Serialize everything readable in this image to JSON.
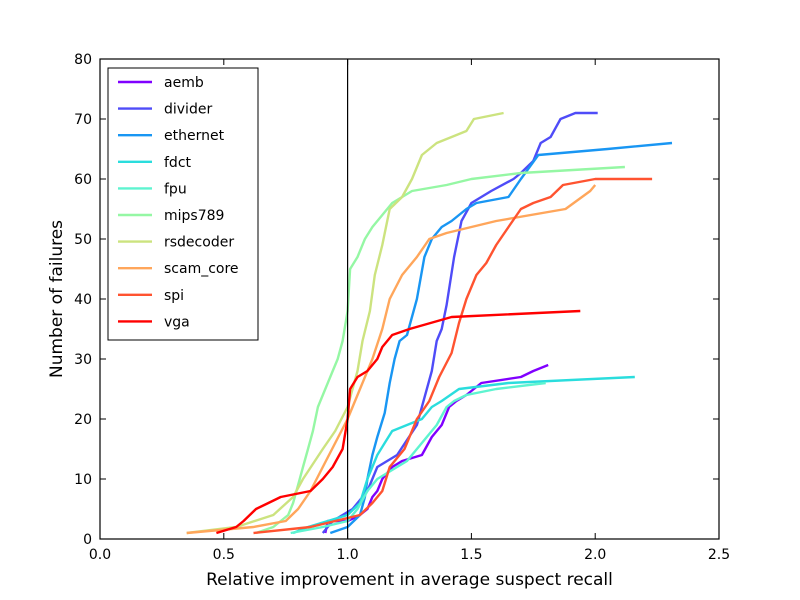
{
  "chart_data": {
    "type": "line",
    "title": "",
    "xlabel": "Relative improvement in average suspect recall",
    "ylabel": "Number of failures",
    "xlim": [
      0.0,
      2.5
    ],
    "ylim": [
      0,
      80
    ],
    "xticks": [
      "0.0",
      "0.5",
      "1.0",
      "1.5",
      "2.0",
      "2.5"
    ],
    "yticks": [
      "0",
      "10",
      "20",
      "30",
      "40",
      "50",
      "60",
      "70",
      "80"
    ],
    "grid": false,
    "legend": "top-left",
    "reference_line_x": 1.0,
    "series": [
      {
        "name": "aemb",
        "color": "#8000ff",
        "points": [
          [
            0.91,
            1
          ],
          [
            0.92,
            3
          ],
          [
            1.0,
            3
          ],
          [
            1.05,
            4
          ],
          [
            1.08,
            5
          ],
          [
            1.1,
            7
          ],
          [
            1.12,
            8
          ],
          [
            1.14,
            10
          ],
          [
            1.16,
            11
          ],
          [
            1.18,
            12
          ],
          [
            1.22,
            13
          ],
          [
            1.3,
            14
          ],
          [
            1.34,
            17
          ],
          [
            1.38,
            19
          ],
          [
            1.41,
            22
          ],
          [
            1.44,
            23
          ],
          [
            1.48,
            24
          ],
          [
            1.54,
            26
          ],
          [
            1.7,
            27
          ],
          [
            1.75,
            28
          ],
          [
            1.81,
            29
          ]
        ]
      },
      {
        "name": "divider",
        "color": "#4f4cf8",
        "points": [
          [
            0.9,
            1
          ],
          [
            0.94,
            3
          ],
          [
            1.02,
            5
          ],
          [
            1.08,
            8
          ],
          [
            1.12,
            12
          ],
          [
            1.2,
            14
          ],
          [
            1.28,
            19
          ],
          [
            1.34,
            28
          ],
          [
            1.36,
            33
          ],
          [
            1.38,
            35
          ],
          [
            1.4,
            39
          ],
          [
            1.43,
            47
          ],
          [
            1.46,
            53
          ],
          [
            1.5,
            56
          ],
          [
            1.58,
            58
          ],
          [
            1.67,
            60
          ],
          [
            1.7,
            61
          ],
          [
            1.75,
            63
          ],
          [
            1.78,
            66
          ],
          [
            1.82,
            67
          ],
          [
            1.86,
            70
          ],
          [
            1.92,
            71
          ],
          [
            2.01,
            71
          ]
        ]
      },
      {
        "name": "ethernet",
        "color": "#1996f3",
        "points": [
          [
            0.93,
            1
          ],
          [
            1.0,
            2
          ],
          [
            1.05,
            4
          ],
          [
            1.07,
            7
          ],
          [
            1.08,
            10
          ],
          [
            1.1,
            14
          ],
          [
            1.12,
            17
          ],
          [
            1.15,
            21
          ],
          [
            1.17,
            26
          ],
          [
            1.19,
            30
          ],
          [
            1.21,
            33
          ],
          [
            1.24,
            34
          ],
          [
            1.28,
            40
          ],
          [
            1.31,
            47
          ],
          [
            1.34,
            50
          ],
          [
            1.38,
            52
          ],
          [
            1.42,
            53
          ],
          [
            1.48,
            55
          ],
          [
            1.52,
            56
          ],
          [
            1.65,
            57
          ],
          [
            1.7,
            60
          ],
          [
            1.77,
            64
          ],
          [
            2.05,
            65
          ],
          [
            2.31,
            66
          ]
        ]
      },
      {
        "name": "fdct",
        "color": "#2adddd",
        "points": [
          [
            0.78,
            1
          ],
          [
            0.84,
            2
          ],
          [
            0.92,
            3
          ],
          [
            1.0,
            4
          ],
          [
            1.05,
            6
          ],
          [
            1.08,
            10
          ],
          [
            1.12,
            14
          ],
          [
            1.15,
            16
          ],
          [
            1.18,
            18
          ],
          [
            1.24,
            19
          ],
          [
            1.3,
            20
          ],
          [
            1.34,
            22
          ],
          [
            1.38,
            23
          ],
          [
            1.45,
            25
          ],
          [
            1.65,
            26
          ],
          [
            2.16,
            27
          ]
        ]
      },
      {
        "name": "fpu",
        "color": "#5ef4d0",
        "points": [
          [
            0.77,
            1
          ],
          [
            0.9,
            2
          ],
          [
            1.0,
            3
          ],
          [
            1.04,
            5
          ],
          [
            1.08,
            8
          ],
          [
            1.12,
            10
          ],
          [
            1.16,
            11
          ],
          [
            1.2,
            12
          ],
          [
            1.24,
            13
          ],
          [
            1.28,
            15
          ],
          [
            1.32,
            17
          ],
          [
            1.36,
            19
          ],
          [
            1.4,
            22
          ],
          [
            1.43,
            23
          ],
          [
            1.48,
            24
          ],
          [
            1.6,
            25
          ],
          [
            1.8,
            26
          ]
        ]
      },
      {
        "name": "mips789",
        "color": "#95f7a4",
        "points": [
          [
            0.63,
            1
          ],
          [
            0.7,
            2
          ],
          [
            0.76,
            4
          ],
          [
            0.78,
            6
          ],
          [
            0.8,
            9
          ],
          [
            0.82,
            12
          ],
          [
            0.84,
            15
          ],
          [
            0.86,
            18
          ],
          [
            0.88,
            22
          ],
          [
            0.91,
            25
          ],
          [
            0.94,
            28
          ],
          [
            0.96,
            30
          ],
          [
            0.98,
            33
          ],
          [
            1.0,
            38
          ],
          [
            1.01,
            45
          ],
          [
            1.04,
            47
          ],
          [
            1.07,
            50
          ],
          [
            1.1,
            52
          ],
          [
            1.14,
            54
          ],
          [
            1.18,
            56
          ],
          [
            1.26,
            58
          ],
          [
            1.4,
            59
          ],
          [
            1.5,
            60
          ],
          [
            1.7,
            61
          ],
          [
            2.12,
            62
          ]
        ]
      },
      {
        "name": "rsdecoder",
        "color": "#cce37f",
        "points": [
          [
            0.35,
            1
          ],
          [
            0.55,
            2
          ],
          [
            0.7,
            4
          ],
          [
            0.78,
            7
          ],
          [
            0.82,
            10
          ],
          [
            0.9,
            15
          ],
          [
            0.95,
            18
          ],
          [
            1.0,
            22
          ],
          [
            1.04,
            28
          ],
          [
            1.06,
            33
          ],
          [
            1.09,
            38
          ],
          [
            1.11,
            44
          ],
          [
            1.14,
            49
          ],
          [
            1.17,
            55
          ],
          [
            1.22,
            57
          ],
          [
            1.26,
            60
          ],
          [
            1.3,
            64
          ],
          [
            1.36,
            66
          ],
          [
            1.42,
            67
          ],
          [
            1.48,
            68
          ],
          [
            1.51,
            70
          ],
          [
            1.63,
            71
          ]
        ]
      },
      {
        "name": "scam_core",
        "color": "#ffa65b",
        "points": [
          [
            0.35,
            1
          ],
          [
            0.62,
            2
          ],
          [
            0.75,
            3
          ],
          [
            0.8,
            5
          ],
          [
            0.85,
            8
          ],
          [
            0.9,
            12
          ],
          [
            0.95,
            16
          ],
          [
            1.0,
            20
          ],
          [
            1.05,
            25
          ],
          [
            1.1,
            30
          ],
          [
            1.14,
            35
          ],
          [
            1.17,
            40
          ],
          [
            1.22,
            44
          ],
          [
            1.28,
            47
          ],
          [
            1.33,
            50
          ],
          [
            1.4,
            51
          ],
          [
            1.6,
            53
          ],
          [
            1.88,
            55
          ],
          [
            1.98,
            58
          ],
          [
            2.0,
            59
          ]
        ]
      },
      {
        "name": "spi",
        "color": "#ff5330",
        "points": [
          [
            0.62,
            1
          ],
          [
            0.85,
            2
          ],
          [
            0.95,
            3
          ],
          [
            1.05,
            4
          ],
          [
            1.1,
            6
          ],
          [
            1.14,
            8
          ],
          [
            1.17,
            12
          ],
          [
            1.23,
            15
          ],
          [
            1.28,
            20
          ],
          [
            1.33,
            23
          ],
          [
            1.37,
            27
          ],
          [
            1.42,
            31
          ],
          [
            1.45,
            36
          ],
          [
            1.48,
            40
          ],
          [
            1.52,
            44
          ],
          [
            1.56,
            46
          ],
          [
            1.6,
            49
          ],
          [
            1.65,
            52
          ],
          [
            1.7,
            55
          ],
          [
            1.75,
            56
          ],
          [
            1.82,
            57
          ],
          [
            1.87,
            59
          ],
          [
            2.0,
            60
          ],
          [
            2.23,
            60
          ]
        ]
      },
      {
        "name": "vga",
        "color": "#ff0000",
        "points": [
          [
            0.47,
            1
          ],
          [
            0.55,
            2
          ],
          [
            0.58,
            3
          ],
          [
            0.63,
            5
          ],
          [
            0.68,
            6
          ],
          [
            0.73,
            7
          ],
          [
            0.85,
            8
          ],
          [
            0.9,
            10
          ],
          [
            0.94,
            12
          ],
          [
            0.98,
            15
          ],
          [
            1.0,
            20
          ],
          [
            1.01,
            25
          ],
          [
            1.04,
            27
          ],
          [
            1.08,
            28
          ],
          [
            1.12,
            30
          ],
          [
            1.14,
            32
          ],
          [
            1.18,
            34
          ],
          [
            1.25,
            35
          ],
          [
            1.42,
            37
          ],
          [
            1.94,
            38
          ]
        ]
      }
    ]
  }
}
